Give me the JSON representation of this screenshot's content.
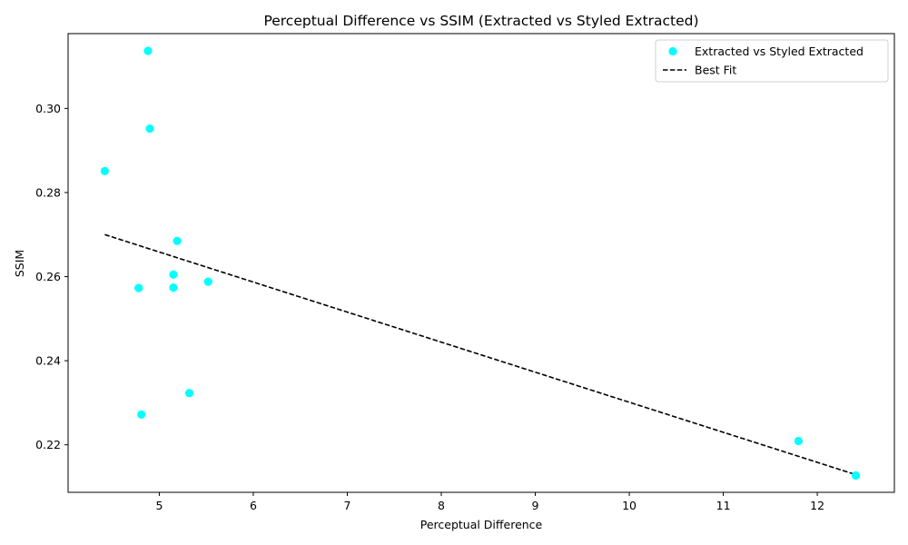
{
  "chart_data": {
    "type": "scatter",
    "title": "Perceptual Difference vs SSIM (Extracted vs Styled Extracted)",
    "xlabel": "Perceptual Difference",
    "ylabel": "SSIM",
    "xlim": [
      4.03,
      12.82
    ],
    "ylim": [
      0.2087,
      0.3178
    ],
    "xticks": [
      5,
      6,
      7,
      8,
      9,
      10,
      11,
      12
    ],
    "yticks": [
      0.22,
      0.24,
      0.26,
      0.28,
      0.3
    ],
    "ytick_labels": [
      "0.22",
      "0.24",
      "0.26",
      "0.28",
      "0.30"
    ],
    "grid": false,
    "legend": {
      "placement": "upper-right",
      "entries": [
        {
          "label": "Extracted vs Styled Extracted",
          "kind": "marker"
        },
        {
          "label": "Best Fit",
          "kind": "line"
        }
      ]
    },
    "series": [
      {
        "name": "Extracted vs Styled Extracted",
        "type": "scatter",
        "color": "#00ffff",
        "points": [
          {
            "x": 4.88,
            "y": 0.3137
          },
          {
            "x": 4.9,
            "y": 0.2952
          },
          {
            "x": 4.42,
            "y": 0.2851
          },
          {
            "x": 5.19,
            "y": 0.2685
          },
          {
            "x": 5.15,
            "y": 0.2605
          },
          {
            "x": 5.52,
            "y": 0.2588
          },
          {
            "x": 5.15,
            "y": 0.2574
          },
          {
            "x": 4.78,
            "y": 0.2573
          },
          {
            "x": 5.32,
            "y": 0.2323
          },
          {
            "x": 4.81,
            "y": 0.2272
          },
          {
            "x": 11.8,
            "y": 0.2209
          },
          {
            "x": 12.41,
            "y": 0.2127
          }
        ]
      },
      {
        "name": "Best Fit",
        "type": "line",
        "color": "#000000",
        "dash": "dashed",
        "points": [
          {
            "x": 4.42,
            "y": 0.27
          },
          {
            "x": 12.41,
            "y": 0.2129
          }
        ]
      }
    ]
  }
}
